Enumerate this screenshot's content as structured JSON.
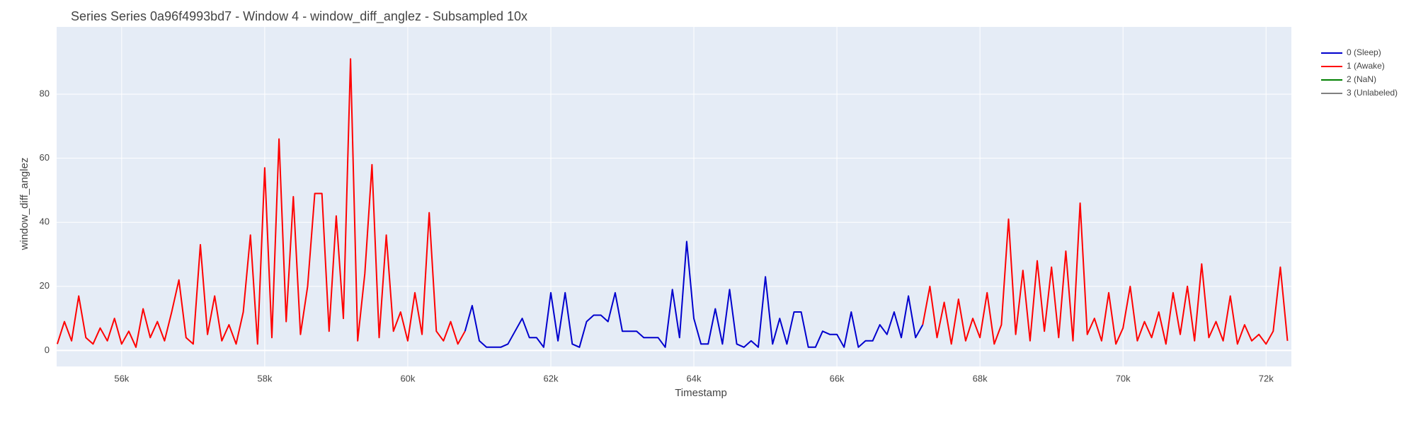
{
  "chart_data": {
    "type": "line",
    "title": "Series Series 0a96f4993bd7 - Window 4 - window_diff_anglez - Subsampled 10x",
    "x_label": "Timestamp",
    "y_label": "window_diff_anglez",
    "xlim": [
      55091,
      72354
    ],
    "ylim": [
      -5,
      101
    ],
    "xticks": [
      {
        "value": 56000,
        "label": "56k"
      },
      {
        "value": 58000,
        "label": "58k"
      },
      {
        "value": 60000,
        "label": "60k"
      },
      {
        "value": 62000,
        "label": "62k"
      },
      {
        "value": 64000,
        "label": "64k"
      },
      {
        "value": 66000,
        "label": "66k"
      },
      {
        "value": 68000,
        "label": "68k"
      },
      {
        "value": 70000,
        "label": "70k"
      },
      {
        "value": 72000,
        "label": "72k"
      }
    ],
    "yticks": [
      0,
      20,
      40,
      60,
      80
    ],
    "grid": true,
    "legend": "right",
    "series": [
      {
        "name": "0 (Sleep)",
        "color": "#0000cd",
        "x": [
          60800,
          60900,
          61000,
          61100,
          61200,
          61300,
          61400,
          61500,
          61600,
          61700,
          61800,
          61900,
          62000,
          62100,
          62200,
          62300,
          62400,
          62500,
          62600,
          62700,
          62800,
          62900,
          63000,
          63100,
          63200,
          63300,
          63400,
          63500,
          63600,
          63700,
          63800,
          63900,
          64000,
          64100,
          64200,
          64300,
          64400,
          64500,
          64600,
          64700,
          64800,
          64900,
          65000,
          65100,
          65200,
          65300,
          65400,
          65500,
          65600,
          65700,
          65800,
          65900,
          66000,
          66100,
          66200,
          66300,
          66400,
          66500,
          66600,
          66700,
          66800,
          66900,
          67000,
          67100,
          67200
        ],
        "values": [
          6,
          14,
          3,
          1,
          1,
          1,
          2,
          6,
          10,
          4,
          4,
          1,
          18,
          3,
          18,
          2,
          1,
          9,
          11,
          11,
          9,
          18,
          6,
          6,
          6,
          4,
          4,
          4,
          1,
          19,
          4,
          34,
          10,
          2,
          2,
          13,
          2,
          19,
          2,
          1,
          3,
          1,
          23,
          2,
          10,
          2,
          12,
          12,
          1,
          1,
          6,
          5,
          5,
          1,
          12,
          1,
          3,
          3,
          8,
          5,
          12,
          4,
          17,
          4,
          8
        ]
      },
      {
        "name": "1 (Awake)",
        "color": "#ff0000",
        "x": [
          55100,
          55200,
          55300,
          55400,
          55500,
          55600,
          55700,
          55800,
          55900,
          56000,
          56100,
          56200,
          56300,
          56400,
          56500,
          56600,
          56700,
          56800,
          56900,
          57000,
          57100,
          57200,
          57300,
          57400,
          57500,
          57600,
          57700,
          57800,
          57900,
          58000,
          58100,
          58200,
          58300,
          58400,
          58500,
          58600,
          58700,
          58800,
          58900,
          59000,
          59100,
          59200,
          59300,
          59400,
          59500,
          59600,
          59700,
          59800,
          59900,
          60000,
          60100,
          60200,
          60300,
          60400,
          60500,
          60600,
          60700,
          60800,
          null,
          67200,
          67300,
          67400,
          67500,
          67600,
          67700,
          67800,
          67900,
          68000,
          68100,
          68200,
          68300,
          68400,
          68500,
          68600,
          68700,
          68800,
          68900,
          69000,
          69100,
          69200,
          69300,
          69400,
          69500,
          69600,
          69700,
          69800,
          69900,
          70000,
          70100,
          70200,
          70300,
          70400,
          70500,
          70600,
          70700,
          70800,
          70900,
          71000,
          71100,
          71200,
          71300,
          71400,
          71500,
          71600,
          71700,
          71800,
          71900,
          72000,
          72100,
          72200,
          72300
        ],
        "values": [
          2,
          9,
          3,
          17,
          4,
          2,
          7,
          3,
          10,
          2,
          6,
          1,
          13,
          4,
          9,
          3,
          12,
          22,
          4,
          2,
          33,
          5,
          17,
          3,
          8,
          2,
          12,
          36,
          2,
          57,
          4,
          66,
          9,
          48,
          5,
          20,
          49,
          49,
          6,
          42,
          10,
          91,
          3,
          24,
          58,
          4,
          36,
          6,
          12,
          3,
          18,
          5,
          43,
          6,
          3,
          9,
          2,
          6,
          null,
          8,
          20,
          4,
          15,
          2,
          16,
          3,
          10,
          4,
          18,
          2,
          8,
          41,
          5,
          25,
          3,
          28,
          6,
          26,
          4,
          31,
          3,
          46,
          5,
          10,
          3,
          18,
          2,
          7,
          20,
          3,
          9,
          4,
          12,
          2,
          18,
          5,
          20,
          3,
          27,
          4,
          9,
          3,
          17,
          2,
          8,
          3,
          5,
          2,
          6,
          26,
          3
        ]
      },
      {
        "name": "2 (NaN)",
        "color": "#008000",
        "x": [],
        "values": []
      },
      {
        "name": "3 (Unlabeled)",
        "color": "#808080",
        "x": [],
        "values": []
      }
    ]
  }
}
